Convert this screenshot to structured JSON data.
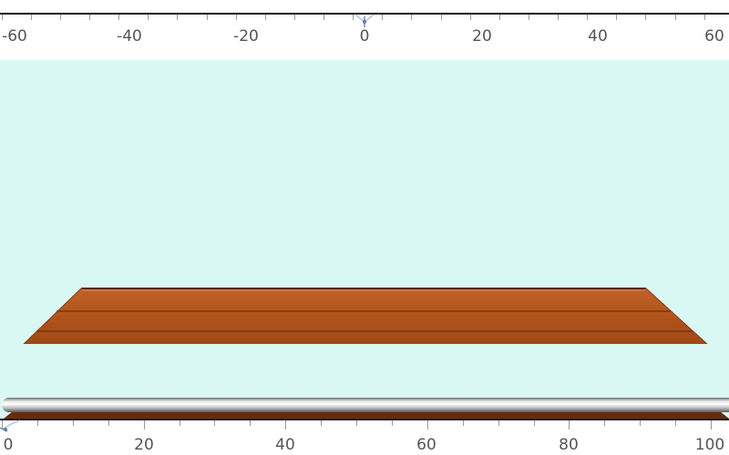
{
  "top_ruler": {
    "labels": [
      "-60",
      "-40",
      "-20",
      "0",
      "20",
      "40",
      "60"
    ],
    "zero_marker_icon": "ruler-origin-marker-icon"
  },
  "scene": {
    "background_color": "#d9f8f4",
    "table_color": "#b5581f",
    "table_dark_color": "#7a3413",
    "rail_icon": "metal-rail"
  },
  "bottom_ruler": {
    "labels": [
      "0",
      "20",
      "40",
      "60",
      "80",
      "100"
    ],
    "origin_marker_icon": "ruler-origin-marker-icon"
  }
}
